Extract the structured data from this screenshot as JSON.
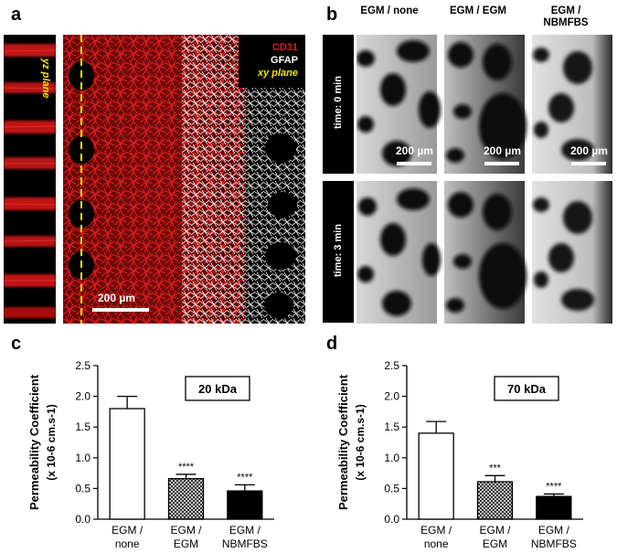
{
  "panel_a": {
    "label": "a",
    "yz_label": "yz plane",
    "legend": {
      "cd31": "CD31",
      "gfap": "GFAP",
      "xy": "xy plane"
    },
    "colors": {
      "cd31": "#e01b1b",
      "gfap": "#ffffff",
      "plane": "#f2e600"
    },
    "scale_bar": "200 µm"
  },
  "panel_b": {
    "label": "b",
    "columns": [
      "EGM / none",
      "EGM / EGM",
      "EGM / NBMFBS"
    ],
    "rows": [
      "time: 0 min",
      "time: 3 min"
    ],
    "scale_bar": "200 µm"
  },
  "chart_data": [
    {
      "type": "bar",
      "panel": "c",
      "categories": [
        "EGM / none",
        "EGM / EGM",
        "EGM / NBMFBS"
      ],
      "values": [
        1.8,
        0.66,
        0.46
      ],
      "errors": [
        0.2,
        0.07,
        0.1
      ],
      "significance": [
        "",
        "****",
        "****"
      ],
      "fills": [
        "white",
        "crosshatch",
        "black"
      ],
      "annotation": "20 kDa",
      "ylabel_line1": "Permeability Coefficient",
      "ylabel_line2": "(x 10-6 cm.s-1)",
      "ylim": [
        0,
        2.5
      ],
      "yticks": [
        "0.0",
        "0.5",
        "1.0",
        "1.5",
        "2.0",
        "2.5"
      ]
    },
    {
      "type": "bar",
      "panel": "d",
      "categories": [
        "EGM / none",
        "EGM / EGM",
        "EGM / NBMFBS"
      ],
      "values": [
        1.4,
        0.61,
        0.37
      ],
      "errors": [
        0.19,
        0.1,
        0.04
      ],
      "significance": [
        "",
        "***",
        "****"
      ],
      "fills": [
        "white",
        "crosshatch",
        "black"
      ],
      "annotation": "70 kDa",
      "ylabel_line1": "Permeability Coefficient",
      "ylabel_line2": "(x 10-6 cm.s-1)",
      "ylim": [
        0,
        2.5
      ],
      "yticks": [
        "0.0",
        "0.5",
        "1.0",
        "1.5",
        "2.0",
        "2.5"
      ]
    }
  ]
}
